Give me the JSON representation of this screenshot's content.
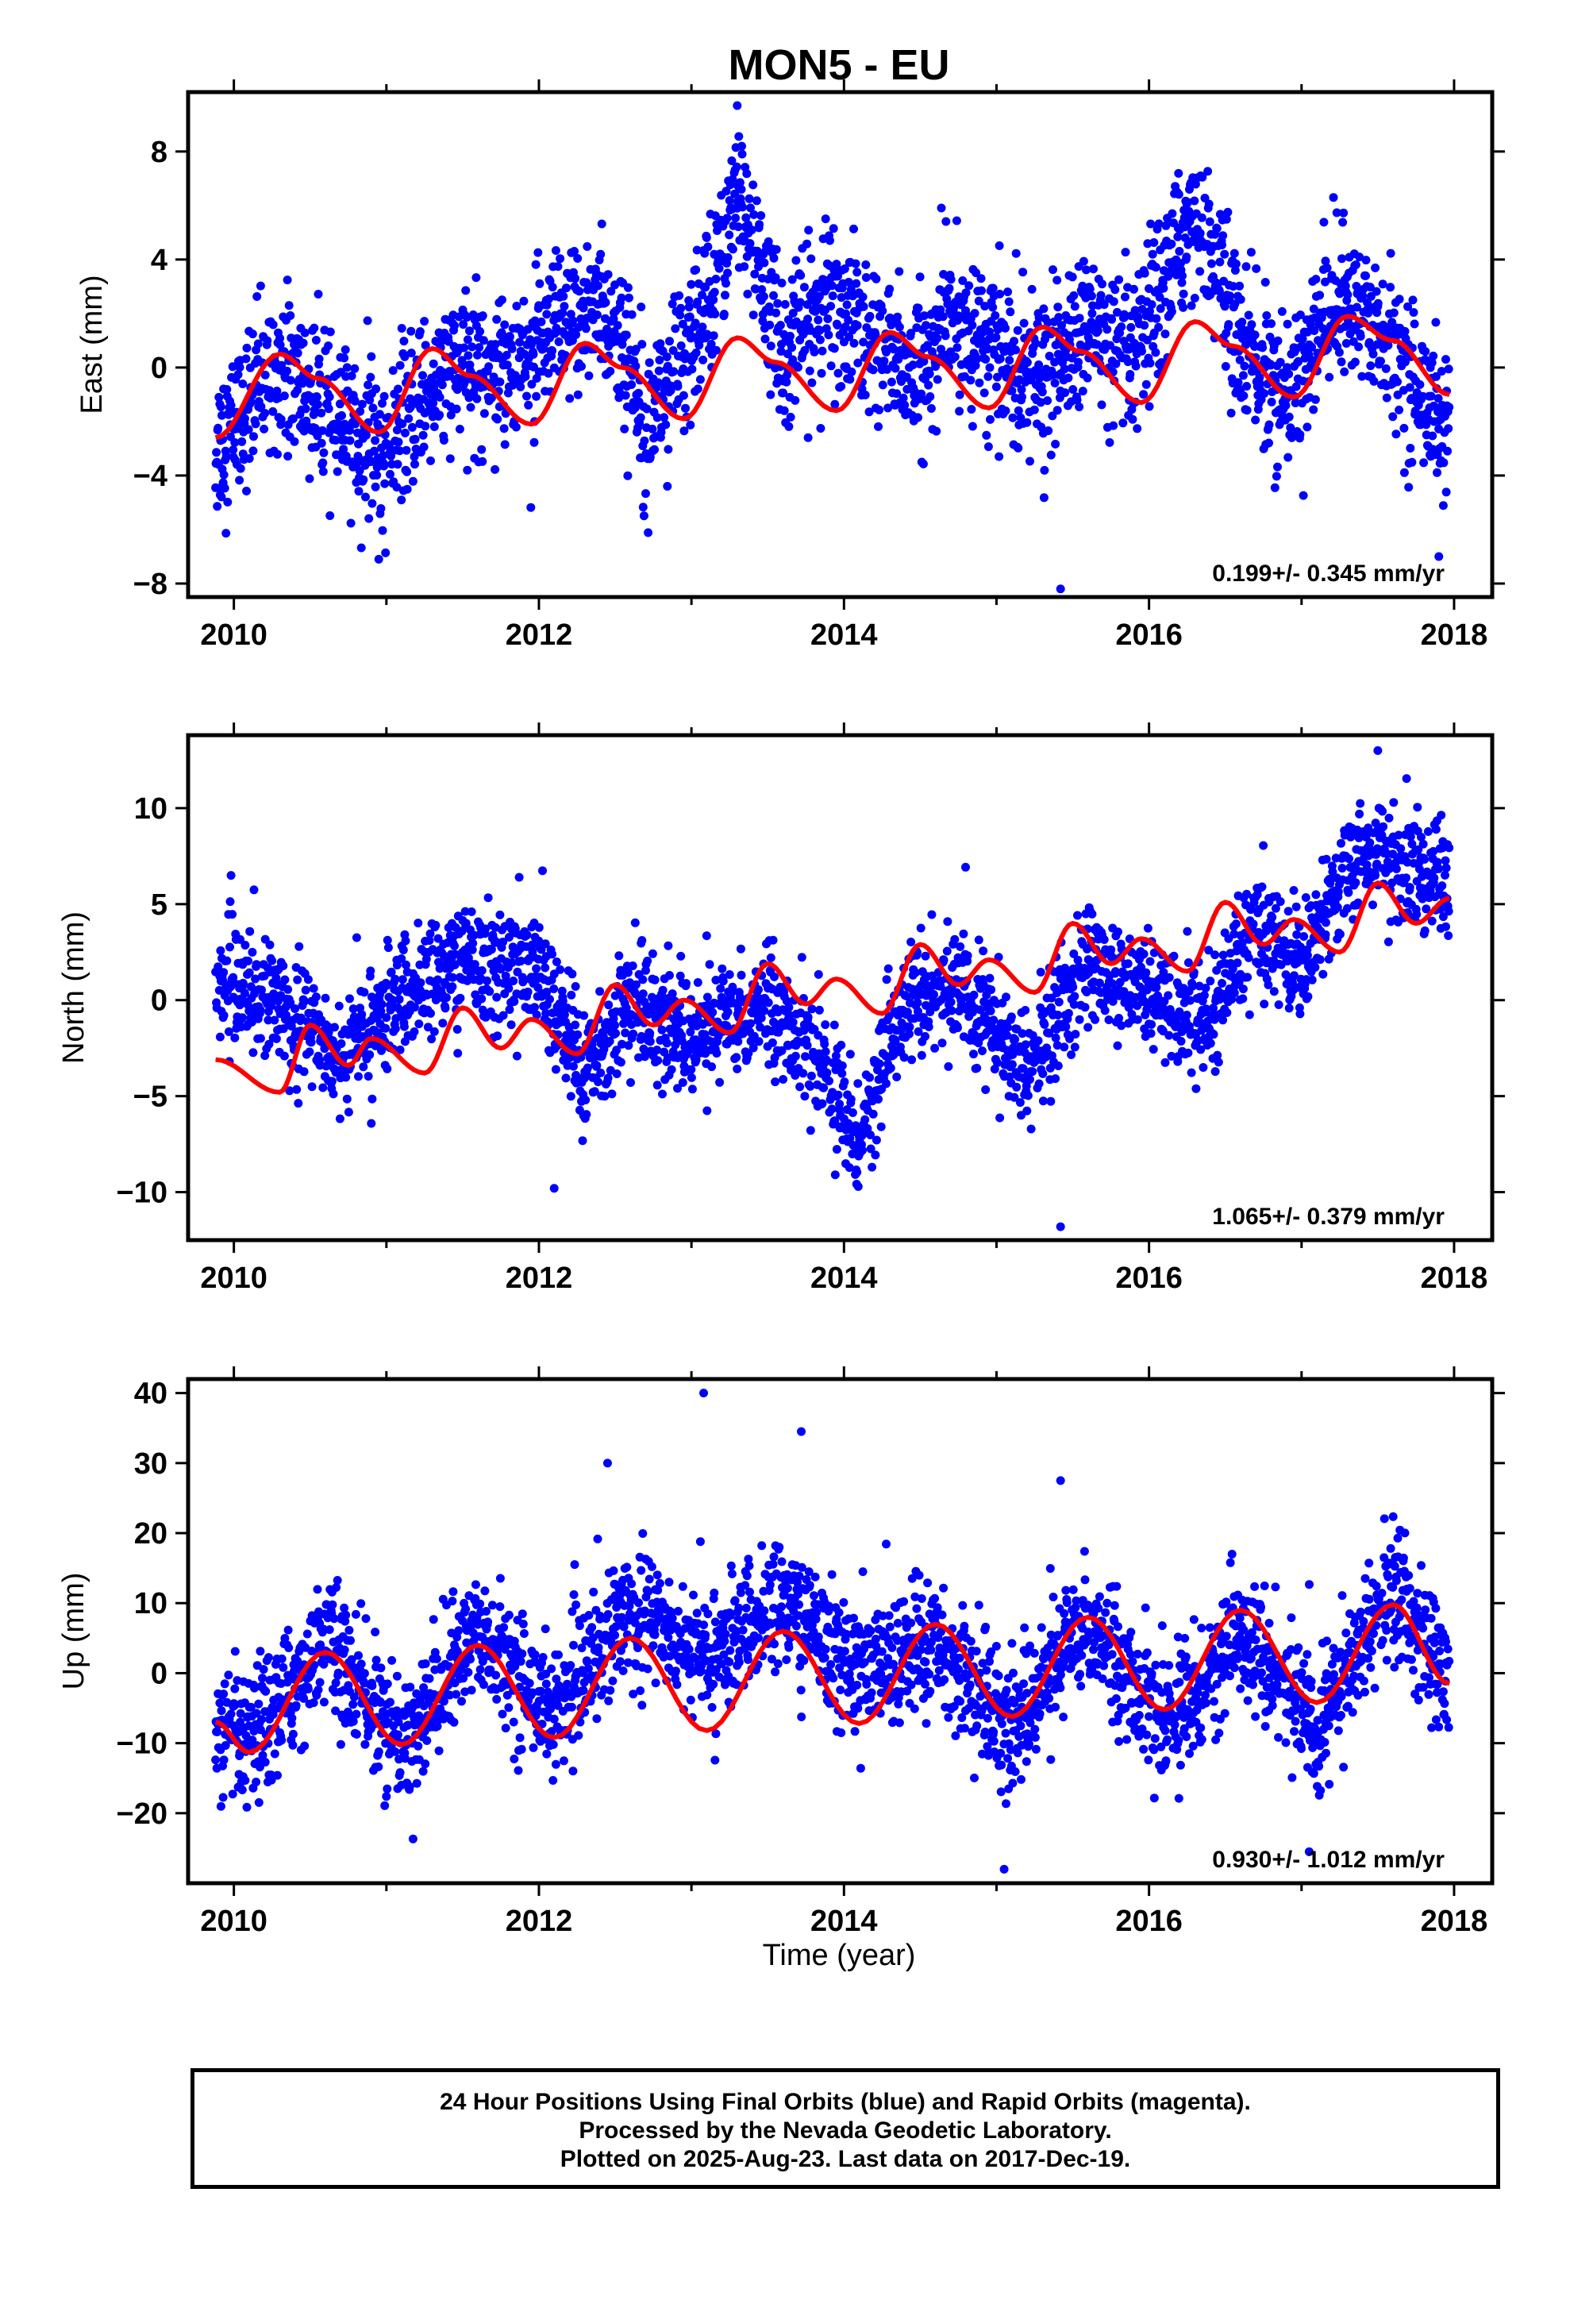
{
  "title": "MON5 - EU",
  "xlabel": "Time (year)",
  "colors": {
    "final_orbits": "#0000ff",
    "fit_line": "#ff0000",
    "frame": "#000000"
  },
  "footer": {
    "line1": "24 Hour Positions Using Final Orbits (blue) and Rapid Orbits (magenta).",
    "line2": "Processed by the Nevada Geodetic Laboratory.",
    "line3": "Plotted on 2025-Aug-23. Last data on 2017-Dec-19."
  },
  "chart_data": [
    {
      "type": "scatter",
      "ylabel": "East (mm)",
      "rate_text": "0.199+/- 0.345 mm/yr",
      "xlim": [
        2009.7,
        2018.25
      ],
      "ylim": [
        -8.5,
        10.2
      ],
      "xticks": [
        2010,
        2012,
        2014,
        2016,
        2018
      ],
      "yticks": [
        -8,
        -4,
        0,
        4,
        8
      ],
      "ytick_labels": [
        "−8",
        "−4",
        "0",
        "4",
        "8"
      ],
      "grid": false,
      "data_start": 2009.88,
      "data_end": 2017.97,
      "model": {
        "offset": -0.1,
        "rate": 0.199,
        "annual_amp": 1.4,
        "annual_phase_year": 0.3,
        "semiannual_amp": 0.3
      },
      "scatter_envelope": {
        "baseline": [
          [
            2009.88,
            -3
          ],
          [
            2010.3,
            0.3
          ],
          [
            2010.6,
            -1.8
          ],
          [
            2011.0,
            -3.2
          ],
          [
            2011.3,
            -0.5
          ],
          [
            2011.7,
            0.2
          ],
          [
            2012.0,
            0.5
          ],
          [
            2012.4,
            2.5
          ],
          [
            2012.7,
            -1.5
          ],
          [
            2013.0,
            0.5
          ],
          [
            2013.3,
            6.5
          ],
          [
            2013.6,
            0.5
          ],
          [
            2013.9,
            2.5
          ],
          [
            2014.2,
            1
          ],
          [
            2014.5,
            -0.5
          ],
          [
            2014.7,
            2
          ],
          [
            2015.0,
            0.5
          ],
          [
            2015.3,
            -0.5
          ],
          [
            2015.6,
            1.5
          ],
          [
            2015.9,
            0
          ],
          [
            2016.3,
            6
          ],
          [
            2016.6,
            1
          ],
          [
            2016.9,
            -1.5
          ],
          [
            2017.2,
            2.5
          ],
          [
            2017.5,
            1.5
          ],
          [
            2017.97,
            -2.5
          ]
        ],
        "scatter_sd": 1.4
      },
      "fit_line": [
        [
          2009.88,
          -2.6
        ],
        [
          2010.3,
          0.5
        ],
        [
          2010.55,
          -0.4
        ],
        [
          2010.95,
          -2.4
        ],
        [
          2011.3,
          0.7
        ],
        [
          2011.55,
          -0.3
        ],
        [
          2011.95,
          -2.1
        ],
        [
          2012.3,
          0.9
        ],
        [
          2012.55,
          0
        ],
        [
          2012.95,
          -1.9
        ],
        [
          2013.3,
          1.1
        ],
        [
          2013.55,
          0.2
        ],
        [
          2013.95,
          -1.6
        ],
        [
          2014.3,
          1.3
        ],
        [
          2014.55,
          0.4
        ],
        [
          2014.95,
          -1.5
        ],
        [
          2015.3,
          1.5
        ],
        [
          2015.55,
          0.6
        ],
        [
          2015.95,
          -1.3
        ],
        [
          2016.3,
          1.7
        ],
        [
          2016.55,
          0.8
        ],
        [
          2016.95,
          -1.1
        ],
        [
          2017.3,
          1.9
        ],
        [
          2017.6,
          1.0
        ],
        [
          2017.97,
          -1.0
        ]
      ],
      "outliers": [
        [
          2015.42,
          -8.2
        ],
        [
          2013.3,
          9.7
        ],
        [
          2010.95,
          -7.1
        ],
        [
          2017.9,
          -7
        ]
      ]
    },
    {
      "type": "scatter",
      "ylabel": "North (mm)",
      "rate_text": "1.065+/- 0.379 mm/yr",
      "xlim": [
        2009.7,
        2018.25
      ],
      "ylim": [
        -12.5,
        13.8
      ],
      "xticks": [
        2010,
        2012,
        2014,
        2016,
        2018
      ],
      "yticks": [
        -10,
        -5,
        0,
        5,
        10
      ],
      "ytick_labels": [
        "−10",
        "−5",
        "0",
        "5",
        "10"
      ],
      "grid": false,
      "data_start": 2009.88,
      "data_end": 2017.97,
      "scatter_envelope": {
        "baseline": [
          [
            2009.88,
            1
          ],
          [
            2010.3,
            0
          ],
          [
            2010.7,
            -3
          ],
          [
            2011.0,
            -0.5
          ],
          [
            2011.5,
            2
          ],
          [
            2012.0,
            1.5
          ],
          [
            2012.3,
            -4
          ],
          [
            2012.6,
            0
          ],
          [
            2013.0,
            -2
          ],
          [
            2013.5,
            0
          ],
          [
            2013.8,
            -3
          ],
          [
            2014.1,
            -7
          ],
          [
            2014.4,
            0
          ],
          [
            2014.8,
            0.5
          ],
          [
            2015.2,
            -4
          ],
          [
            2015.6,
            2
          ],
          [
            2016.0,
            0
          ],
          [
            2016.4,
            -1
          ],
          [
            2016.7,
            4
          ],
          [
            2017.0,
            2
          ],
          [
            2017.4,
            8
          ],
          [
            2017.97,
            6
          ]
        ],
        "scatter_sd": 1.5
      },
      "fit_line": [
        [
          2009.88,
          -3.1
        ],
        [
          2010.3,
          -4.8
        ],
        [
          2010.5,
          -1.3
        ],
        [
          2010.75,
          -3.4
        ],
        [
          2010.9,
          -2.0
        ],
        [
          2011.25,
          -3.8
        ],
        [
          2011.5,
          -0.4
        ],
        [
          2011.75,
          -2.5
        ],
        [
          2011.95,
          -1.0
        ],
        [
          2012.25,
          -2.8
        ],
        [
          2012.5,
          0.8
        ],
        [
          2012.75,
          -1.3
        ],
        [
          2012.95,
          0.0
        ],
        [
          2013.25,
          -1.7
        ],
        [
          2013.5,
          1.9
        ],
        [
          2013.75,
          -0.2
        ],
        [
          2013.95,
          1.1
        ],
        [
          2014.25,
          -0.7
        ],
        [
          2014.5,
          2.9
        ],
        [
          2014.75,
          0.8
        ],
        [
          2014.95,
          2.1
        ],
        [
          2015.25,
          0.4
        ],
        [
          2015.5,
          4.0
        ],
        [
          2015.75,
          1.9
        ],
        [
          2015.95,
          3.2
        ],
        [
          2016.25,
          1.5
        ],
        [
          2016.5,
          5.1
        ],
        [
          2016.75,
          2.9
        ],
        [
          2016.95,
          4.2
        ],
        [
          2017.25,
          2.5
        ],
        [
          2017.5,
          6.1
        ],
        [
          2017.75,
          4.0
        ],
        [
          2017.97,
          5.3
        ]
      ],
      "outliers": [
        [
          2015.42,
          -11.8
        ],
        [
          2012.1,
          -9.8
        ],
        [
          2017.5,
          13
        ]
      ]
    },
    {
      "type": "scatter",
      "ylabel": "Up (mm)",
      "rate_text": "0.930+/- 1.012 mm/yr",
      "xlim": [
        2009.7,
        2018.25
      ],
      "ylim": [
        -30,
        42
      ],
      "xticks": [
        2010,
        2012,
        2014,
        2016,
        2018
      ],
      "yticks": [
        -20,
        -10,
        0,
        10,
        20,
        30,
        40
      ],
      "ytick_labels": [
        "−20",
        "−10",
        "0",
        "10",
        "20",
        "30",
        "40"
      ],
      "grid": false,
      "data_start": 2009.88,
      "data_end": 2017.97,
      "scatter_envelope": {
        "baseline": [
          [
            2009.88,
            -8
          ],
          [
            2010.1,
            -11
          ],
          [
            2010.6,
            5
          ],
          [
            2011.1,
            -11
          ],
          [
            2011.6,
            6
          ],
          [
            2012.1,
            -6
          ],
          [
            2012.6,
            10
          ],
          [
            2013.1,
            2
          ],
          [
            2013.6,
            10
          ],
          [
            2014.1,
            0
          ],
          [
            2014.6,
            4
          ],
          [
            2015.1,
            -8
          ],
          [
            2015.6,
            8
          ],
          [
            2016.1,
            -8
          ],
          [
            2016.6,
            6
          ],
          [
            2017.1,
            -8
          ],
          [
            2017.6,
            12
          ],
          [
            2017.97,
            -2
          ]
        ],
        "scatter_sd": 4.5
      },
      "fit_line": [
        [
          2009.88,
          -7
        ],
        [
          2010.1,
          -11.3
        ],
        [
          2010.6,
          3
        ],
        [
          2011.1,
          -10.2
        ],
        [
          2011.6,
          4
        ],
        [
          2012.1,
          -9.2
        ],
        [
          2012.6,
          5
        ],
        [
          2013.1,
          -8.2
        ],
        [
          2013.6,
          6
        ],
        [
          2014.1,
          -7.2
        ],
        [
          2014.6,
          7
        ],
        [
          2015.1,
          -6.2
        ],
        [
          2015.6,
          8
        ],
        [
          2016.1,
          -5.2
        ],
        [
          2016.6,
          9
        ],
        [
          2017.1,
          -4.2
        ],
        [
          2017.6,
          9.8
        ],
        [
          2017.97,
          -1.5
        ]
      ],
      "outliers": [
        [
          2013.08,
          40
        ],
        [
          2013.72,
          34.5
        ],
        [
          2015.05,
          -28
        ],
        [
          2015.42,
          27.5
        ],
        [
          2017.05,
          -25.5
        ],
        [
          2012.45,
          30
        ]
      ]
    }
  ]
}
